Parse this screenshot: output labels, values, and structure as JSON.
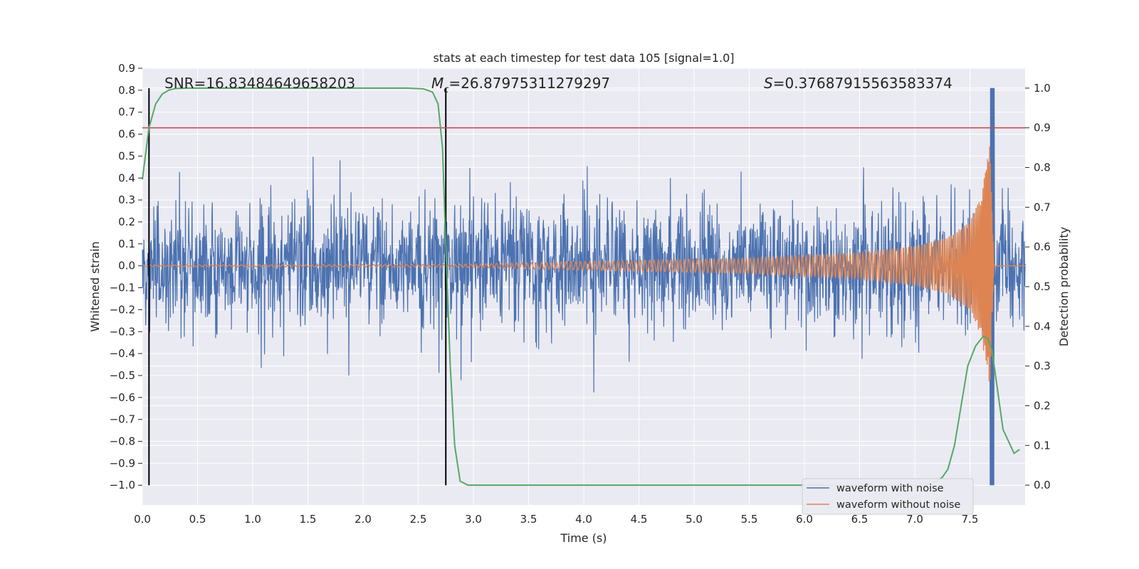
{
  "chart_data": {
    "type": "line",
    "title": "stats at each timestep for test data 105 [signal=1.0]",
    "xlabel": "Time (s)",
    "ylabel_left": "Whitened strain",
    "ylabel_right": "Detection probability",
    "xlim": [
      0,
      8
    ],
    "ylim_left": [
      -1.09,
      0.9
    ],
    "ylim_right": [
      -0.05,
      1.05
    ],
    "x_ticks": [
      0.0,
      0.5,
      1.0,
      1.5,
      2.0,
      2.5,
      3.0,
      3.5,
      4.0,
      4.5,
      5.0,
      5.5,
      6.0,
      6.5,
      7.0,
      7.5
    ],
    "x_tick_labels": [
      "0.0",
      "0.5",
      "1.0",
      "1.5",
      "2.0",
      "2.5",
      "3.0",
      "3.5",
      "4.0",
      "4.5",
      "5.0",
      "5.5",
      "6.0",
      "6.5",
      "7.0",
      "7.5"
    ],
    "y_left_ticks": [
      0.9,
      0.8,
      0.7,
      0.6,
      0.5,
      0.4,
      0.3,
      0.2,
      0.1,
      0.0,
      -0.1,
      -0.2,
      -0.3,
      -0.4,
      -0.5,
      -0.6,
      -0.7,
      -0.8,
      -0.9,
      -1.0
    ],
    "y_left_tick_labels": [
      "0.9",
      "0.8",
      "0.7",
      "0.6",
      "0.5",
      "0.4",
      "0.3",
      "0.2",
      "0.1",
      "0.0",
      "−0.1",
      "−0.2",
      "−0.3",
      "−0.4",
      "−0.5",
      "−0.6",
      "−0.7",
      "−0.8",
      "−0.9",
      "−1.0"
    ],
    "y_right_ticks": [
      1.0,
      0.9,
      0.8,
      0.7,
      0.6,
      0.5,
      0.4,
      0.3,
      0.2,
      0.1,
      0.0
    ],
    "y_right_tick_labels": [
      "1.0",
      "0.9",
      "0.8",
      "0.7",
      "0.6",
      "0.5",
      "0.4",
      "0.3",
      "0.2",
      "0.1",
      "0.0"
    ],
    "annotations": {
      "snr": {
        "prefix": "SNR=",
        "value": "16.83484649658203"
      },
      "mc": {
        "symbol": "M",
        "subscript": "c",
        "prefix": "=",
        "value": "26.87975311279297"
      },
      "s": {
        "symbol": "S",
        "prefix": "=",
        "value": "0.37687915563583374"
      }
    },
    "vertical_markers_x": [
      0.06,
      2.75,
      7.72
    ],
    "threshold": {
      "axis": "right",
      "value": 0.9,
      "color": "#c44e52"
    },
    "series": [
      {
        "name": "waveform with noise",
        "axis": "left",
        "color": "#4c72b0",
        "description_envelope": {
          "typical_amplitude": 0.3,
          "max_peak": 0.81,
          "min_peak": -1.0
        }
      },
      {
        "name": "waveform without noise",
        "axis": "left",
        "color": "#dd8452",
        "chirp_envelope": {
          "t": [
            0,
            2.8,
            4.0,
            5.5,
            6.5,
            7.0,
            7.3,
            7.5,
            7.6,
            7.68,
            7.72
          ],
          "amp": [
            0.003,
            0.006,
            0.02,
            0.035,
            0.06,
            0.09,
            0.13,
            0.2,
            0.32,
            0.55,
            0.0
          ]
        }
      },
      {
        "axis": "right",
        "color": "#55a868",
        "x": [
          0.0,
          0.06,
          0.12,
          0.18,
          0.24,
          0.3,
          0.4,
          0.6,
          1.0,
          1.5,
          2.0,
          2.4,
          2.55,
          2.63,
          2.68,
          2.72,
          2.75,
          2.79,
          2.83,
          2.88,
          2.95,
          3.05,
          3.3,
          4.0,
          5.0,
          6.0,
          6.5,
          7.0,
          7.15,
          7.2,
          7.25,
          7.3,
          7.36,
          7.42,
          7.48,
          7.55,
          7.62,
          7.66,
          7.7,
          7.74,
          7.8,
          7.85,
          7.9,
          7.95
        ],
        "y": [
          0.77,
          0.9,
          0.96,
          0.985,
          0.995,
          0.999,
          1.0,
          1.0,
          1.0,
          1.0,
          1.0,
          1.0,
          0.998,
          0.99,
          0.96,
          0.85,
          0.6,
          0.3,
          0.1,
          0.01,
          0.0,
          0.0,
          0.0,
          0.0,
          0.0,
          0.0,
          0.0,
          0.0,
          0.005,
          0.01,
          0.02,
          0.04,
          0.1,
          0.2,
          0.3,
          0.35,
          0.375,
          0.37,
          0.34,
          0.26,
          0.14,
          0.11,
          0.08,
          0.09
        ]
      }
    ],
    "legend": {
      "location": "lower-right",
      "entries": [
        "waveform with noise",
        "waveform without noise"
      ]
    },
    "grid": true,
    "colors": {
      "background": "#eaeaf2",
      "grid": "#ffffff",
      "marker": "#000000"
    }
  }
}
